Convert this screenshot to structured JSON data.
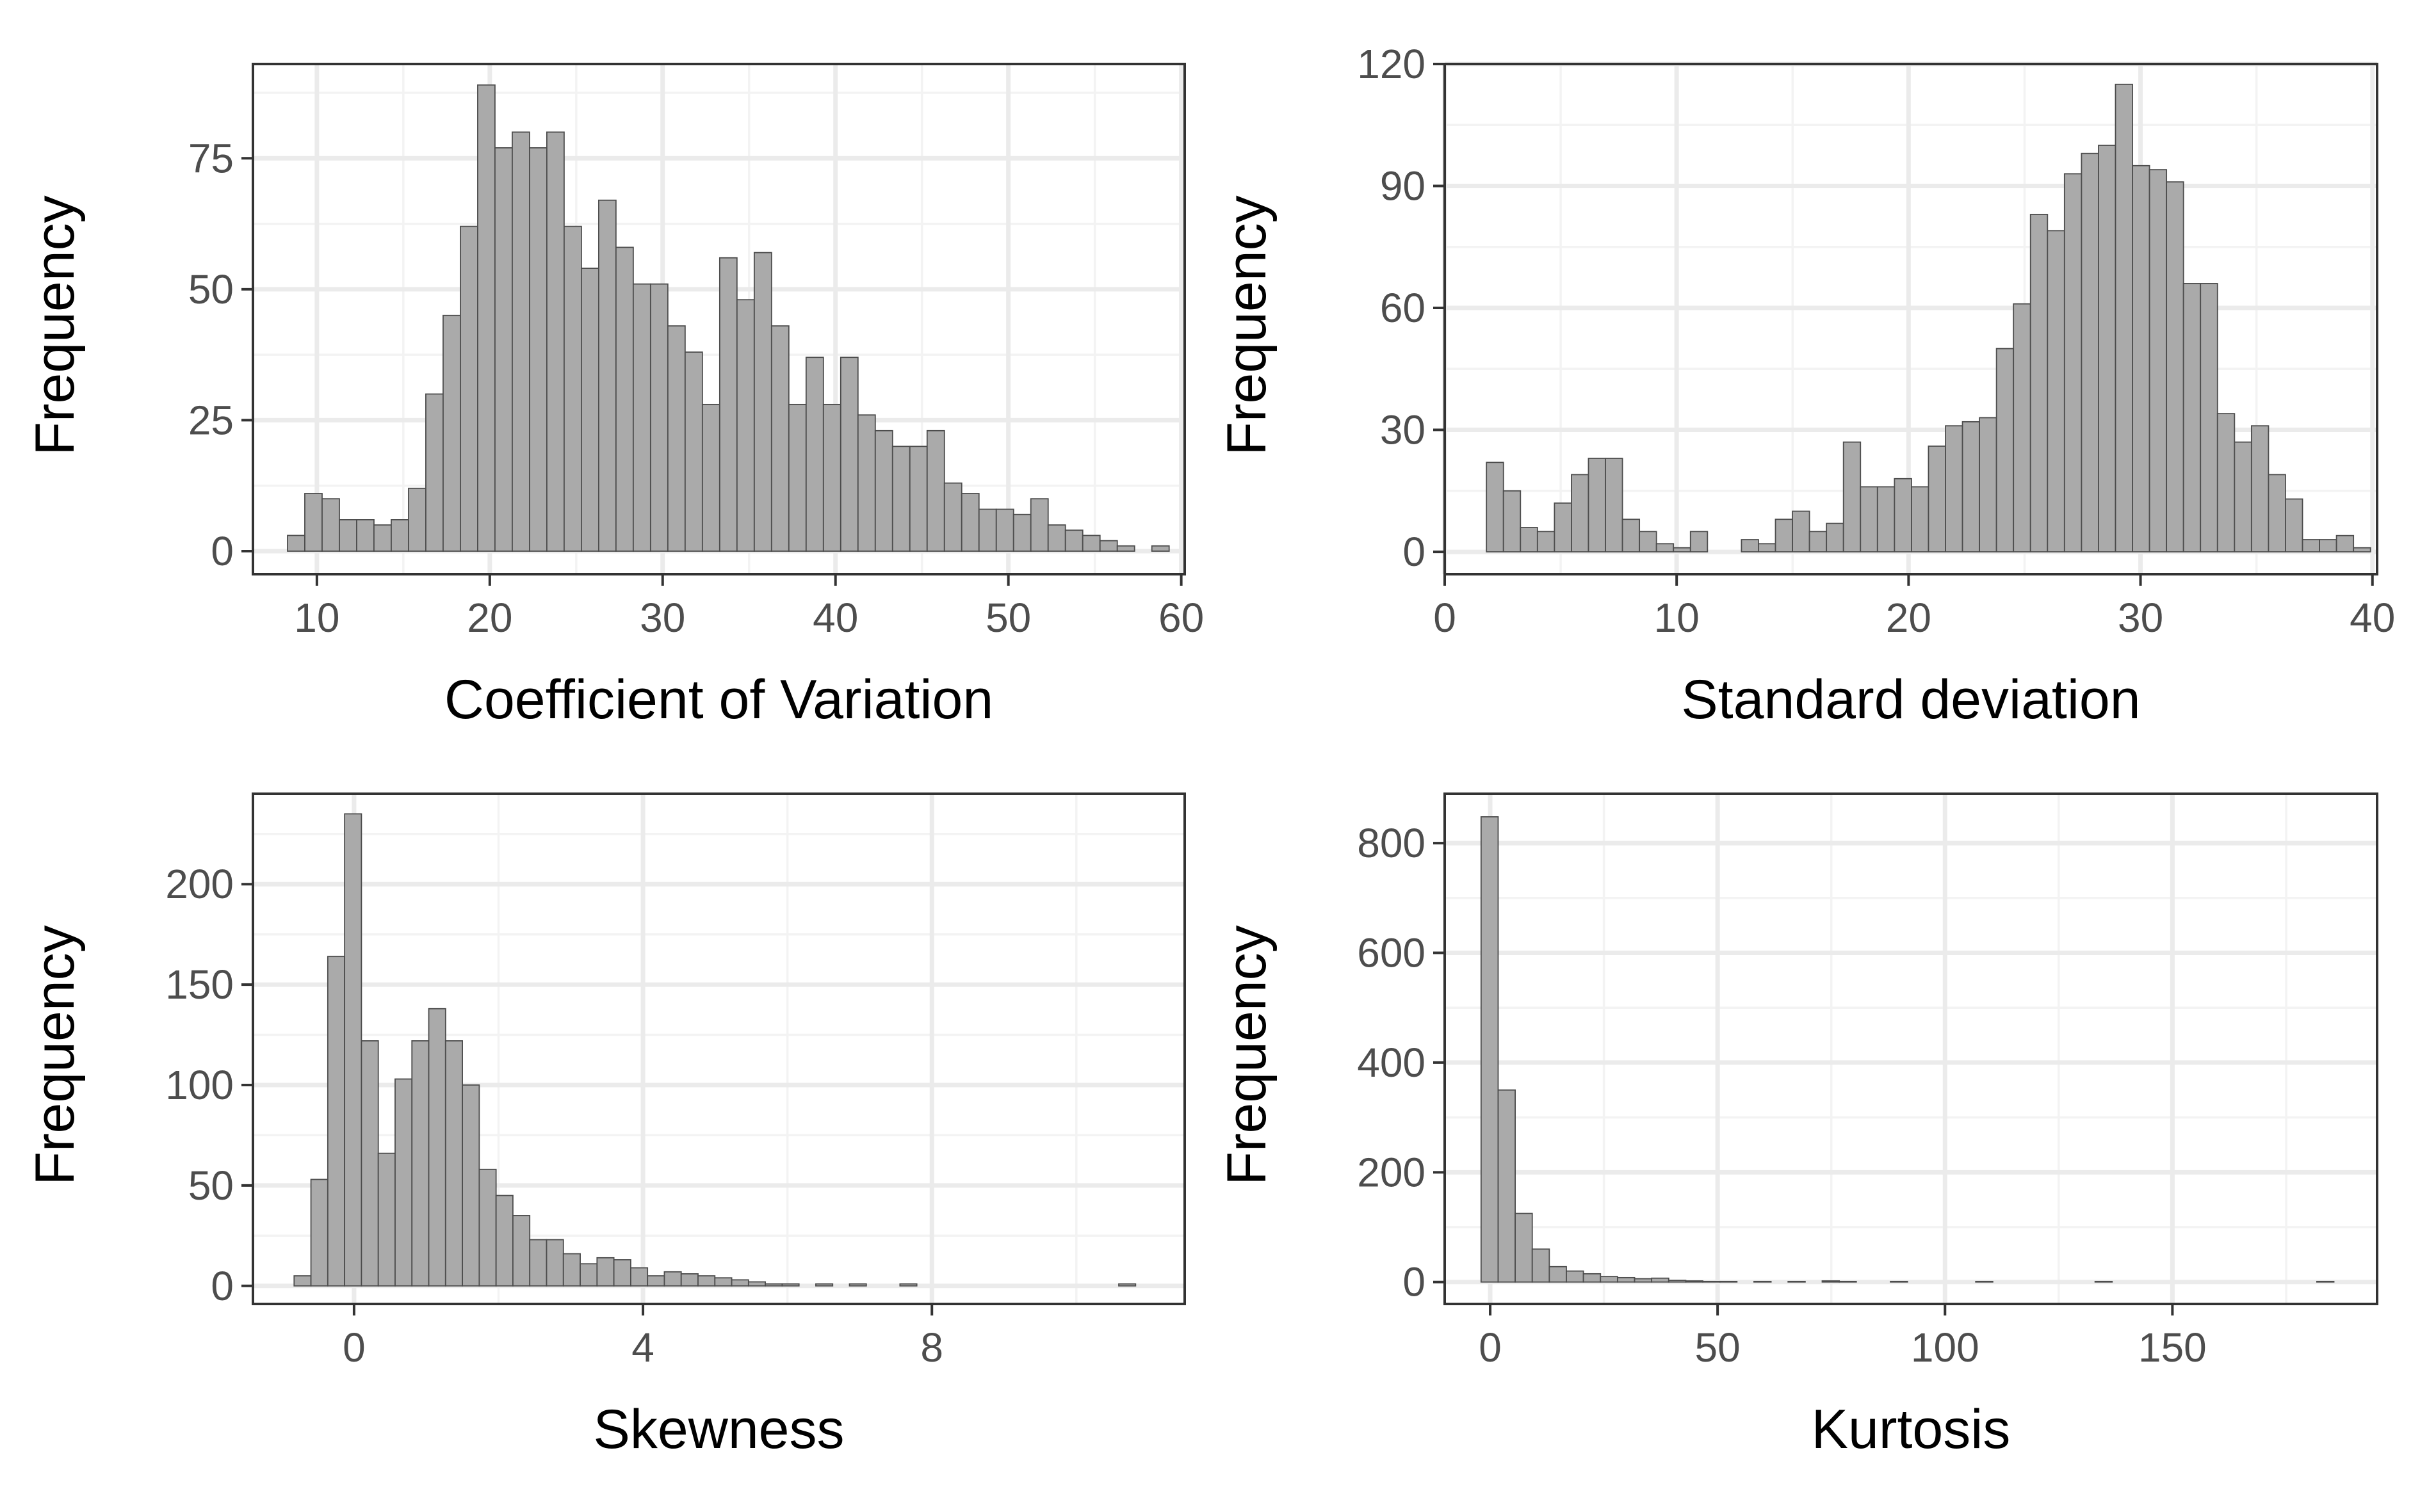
{
  "style": {
    "bar_fill": "#aaaaaa",
    "bar_stroke": "#4d4d4d",
    "grid_major": "#ebebeb",
    "grid_minor": "#f3f3f3",
    "panel_border": "#333333"
  },
  "chart_data": [
    {
      "type": "bar",
      "histogram": true,
      "xlabel": "Coefficient of Variation",
      "ylabel": "Frequency",
      "xlim": [
        6.3,
        60.2
      ],
      "ylim": [
        -4.4,
        93
      ],
      "xticks": [
        10,
        20,
        30,
        40,
        50,
        60
      ],
      "yticks": [
        0,
        25,
        50,
        75
      ],
      "grid": true,
      "bin_start": 8.3,
      "bin_width": 1.0,
      "values": [
        3,
        11,
        10,
        6,
        6,
        5,
        6,
        12,
        30,
        45,
        62,
        89,
        77,
        80,
        77,
        80,
        62,
        54,
        67,
        58,
        51,
        51,
        43,
        38,
        28,
        56,
        48,
        57,
        43,
        28,
        37,
        28,
        37,
        26,
        23,
        20,
        20,
        23,
        13,
        11,
        8,
        8,
        7,
        10,
        5,
        4,
        3,
        2,
        1,
        0,
        1
      ]
    },
    {
      "type": "bar",
      "histogram": true,
      "xlabel": "Standard deviation",
      "ylabel": "Frequency",
      "xlim": [
        0,
        40.2
      ],
      "ylim": [
        -5.5,
        120
      ],
      "xticks": [
        0,
        10,
        20,
        30,
        40
      ],
      "yticks": [
        0,
        30,
        60,
        90,
        120
      ],
      "grid": true,
      "bin_start": 1.8,
      "bin_width": 0.733,
      "values": [
        22,
        15,
        6,
        5,
        12,
        19,
        23,
        23,
        8,
        5,
        2,
        1,
        5,
        0,
        0,
        3,
        2,
        8,
        10,
        5,
        7,
        27,
        16,
        16,
        18,
        16,
        26,
        31,
        32,
        33,
        50,
        61,
        83,
        79,
        93,
        98,
        100,
        115,
        95,
        94,
        91,
        66,
        66,
        34,
        27,
        31,
        19,
        13,
        3,
        3,
        4,
        1
      ]
    },
    {
      "type": "bar",
      "histogram": true,
      "xlabel": "Skewness",
      "ylabel": "Frequency",
      "xlim": [
        -1.4,
        11.5
      ],
      "ylim": [
        -9,
        245
      ],
      "xticks": [
        0,
        4,
        8
      ],
      "yticks": [
        0,
        50,
        100,
        150,
        200
      ],
      "grid": true,
      "bin_start": -0.83,
      "bin_width": 0.233,
      "values": [
        5,
        53,
        164,
        235,
        122,
        66,
        103,
        122,
        138,
        122,
        100,
        58,
        45,
        35,
        23,
        23,
        16,
        11,
        14,
        13,
        9,
        5,
        7,
        6,
        5,
        4,
        3,
        2,
        1,
        1,
        0,
        1,
        0,
        1,
        0,
        0,
        1,
        0,
        0,
        0,
        0,
        0,
        0,
        0,
        0,
        0,
        0,
        0,
        0,
        1
      ]
    },
    {
      "type": "bar",
      "histogram": true,
      "xlabel": "Kurtosis",
      "ylabel": "Frequency",
      "xlim": [
        -10,
        195
      ],
      "ylim": [
        -40,
        890
      ],
      "xticks": [
        0,
        50,
        100,
        150
      ],
      "yticks": [
        0,
        200,
        400,
        600,
        800
      ],
      "grid": true,
      "bin_start": -2.0,
      "bin_width": 3.75,
      "values": [
        848,
        350,
        125,
        60,
        28,
        20,
        15,
        10,
        8,
        6,
        7,
        3,
        2,
        1,
        1,
        0,
        1,
        0,
        1,
        0,
        2,
        1,
        0,
        0,
        1,
        0,
        0,
        0,
        0,
        1,
        0,
        0,
        0,
        0,
        0,
        0,
        1,
        0,
        0,
        0,
        0,
        0,
        0,
        0,
        0,
        0,
        0,
        0,
        0,
        1
      ]
    }
  ]
}
